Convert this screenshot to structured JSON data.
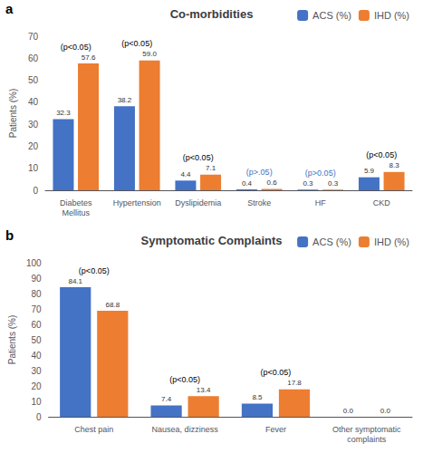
{
  "chart_data": [
    {
      "type": "bar",
      "panel_label": "a",
      "title": "Co-morbidities",
      "ylabel": "Patients (%)",
      "categories": [
        "Diabetes\nMellitus",
        "Hypertension",
        "Dyslipidemia",
        "Stroke",
        "HF",
        "CKD"
      ],
      "series": [
        {
          "name": "ACS (%)",
          "color": "#4472c4",
          "values": [
            32.3,
            38.2,
            4.4,
            0.4,
            0.3,
            5.9
          ],
          "value_labels": [
            "32.3",
            "38.2",
            "4.4",
            "0.4",
            "0.3",
            "5.9"
          ]
        },
        {
          "name": "IHD (%)",
          "color": "#ed7d31",
          "values": [
            57.6,
            59.0,
            7.1,
            0.6,
            0.3,
            8.3
          ],
          "value_labels": [
            "57.6",
            "59.0",
            "7.1",
            "0.6",
            "0.3",
            "8.3"
          ]
        }
      ],
      "ylim": [
        0,
        70
      ],
      "yticks": [
        0,
        10,
        20,
        30,
        40,
        50,
        60,
        70
      ],
      "grid": false,
      "legend": "upper right",
      "data_labels": true,
      "annotations": [
        {
          "text": "(p<0.05)",
          "category": "Diabetes\nMellitus",
          "y": 62,
          "color": "black"
        },
        {
          "text": "(p<0.05)",
          "category": "Hypertension",
          "y": 62,
          "color": "black"
        },
        {
          "text": "(p<0.05)",
          "category": "Dyslipidemia",
          "y": 9.5,
          "color": "black"
        },
        {
          "text": "(p>.05)",
          "category": "Stroke",
          "y": 2.5,
          "color": "#4472c4"
        },
        {
          "text": "(p>0.05)",
          "category": "HF",
          "y": 2.5,
          "color": "#4472c4"
        },
        {
          "text": "(p<0.05)",
          "category": "CKD",
          "y": 11,
          "color": "black"
        }
      ]
    },
    {
      "type": "bar",
      "panel_label": "b",
      "title": "Symptomatic Complaints",
      "ylabel": "Patients (%)",
      "categories": [
        "Chest pain",
        "Nausea, dizziness",
        "Fever",
        "Other symptomatic\ncomplaints"
      ],
      "series": [
        {
          "name": "ACS (%)",
          "color": "#4472c4",
          "values": [
            84.1,
            7.4,
            8.5,
            0.0
          ],
          "value_labels": [
            "84.1",
            "7.4",
            "8.5",
            "0.0"
          ]
        },
        {
          "name": "IHD (%)",
          "color": "#ed7d31",
          "values": [
            68.8,
            13.4,
            17.8,
            0.0
          ],
          "value_labels": [
            "68.8",
            "13.4",
            "17.8",
            "0.0"
          ]
        }
      ],
      "ylim": [
        0,
        100
      ],
      "yticks": [
        0,
        10,
        20,
        30,
        40,
        50,
        60,
        70,
        80,
        90,
        100
      ],
      "grid": false,
      "legend": "upper right",
      "data_labels": true,
      "annotations": [
        {
          "text": "(p<0.05)",
          "category": "Chest pain",
          "y": 88,
          "color": "black"
        },
        {
          "text": "(p<0.05)",
          "category": "Nausea, dizziness",
          "y": 15.5,
          "color": "black"
        },
        {
          "text": "(p<0.05)",
          "category": "Fever",
          "y": 20,
          "color": "black"
        }
      ]
    }
  ]
}
